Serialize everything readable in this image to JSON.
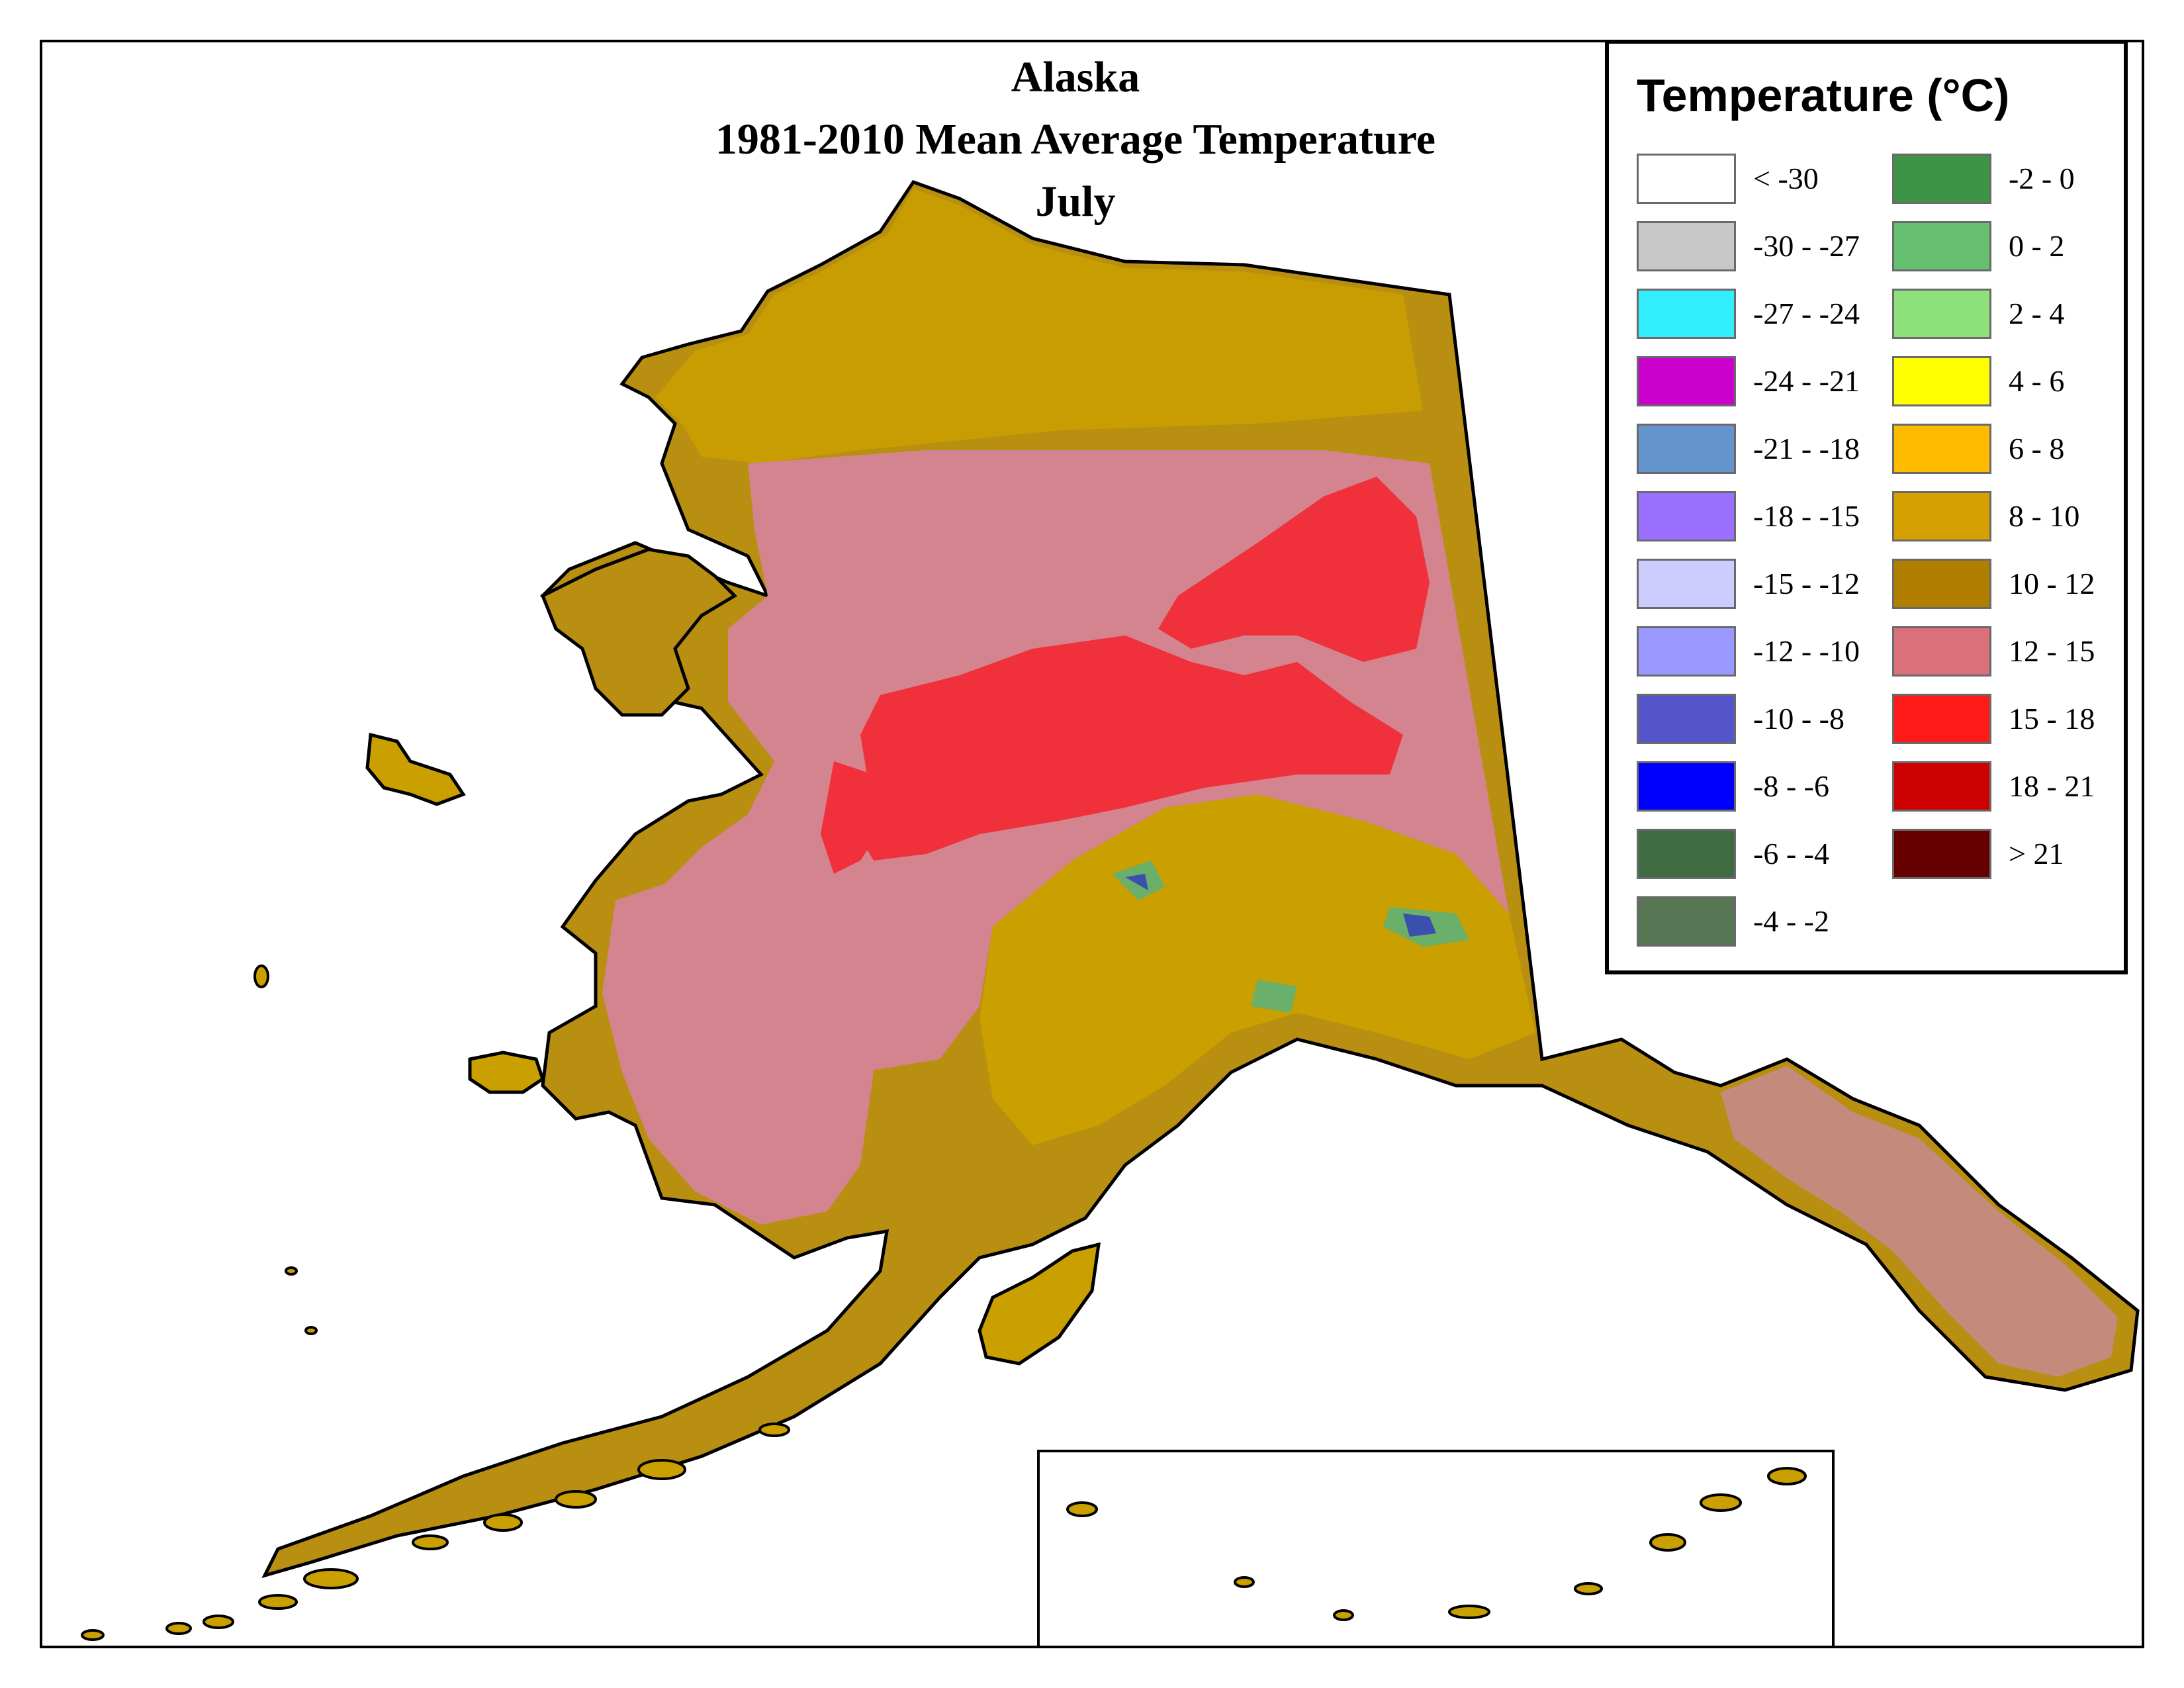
{
  "title": {
    "line1": "Alaska",
    "line2": "1981-2010 Mean Average Temperature",
    "line3": "July"
  },
  "legend": {
    "title": "Temperature (°C)",
    "column1": [
      {
        "label": "< -30",
        "color": "#ffffff"
      },
      {
        "label": "-30 - -27",
        "color": "#c8c8c8"
      },
      {
        "label": "-27 - -24",
        "color": "#33eeff"
      },
      {
        "label": "-24 - -21",
        "color": "#cc00cc"
      },
      {
        "label": "-21 - -18",
        "color": "#6495cd"
      },
      {
        "label": "-18 - -15",
        "color": "#9b70ff"
      },
      {
        "label": "-15 - -12",
        "color": "#ccccff"
      },
      {
        "label": "-12 - -10",
        "color": "#9999ff"
      },
      {
        "label": "-10 - -8",
        "color": "#5555cc"
      },
      {
        "label": "-8 - -6",
        "color": "#0000ff"
      },
      {
        "label": "-6 - -4",
        "color": "#3f6b43"
      },
      {
        "label": "-4 - -2",
        "color": "#577755"
      }
    ],
    "column2": [
      {
        "label": "-2 - 0",
        "color": "#3c9444"
      },
      {
        "label": "0 - 2",
        "color": "#66c070"
      },
      {
        "label": "2 - 4",
        "color": "#8ee07a"
      },
      {
        "label": "4 - 6",
        "color": "#ffff00"
      },
      {
        "label": "6 - 8",
        "color": "#ffbb00"
      },
      {
        "label": "8 - 10",
        "color": "#d6a000"
      },
      {
        "label": "10 - 12",
        "color": "#b07f00"
      },
      {
        "label": "12 - 15",
        "color": "#d9707a"
      },
      {
        "label": "15 - 18",
        "color": "#ff1a1a"
      },
      {
        "label": "18 - 21",
        "color": "#cc0000"
      },
      {
        "label": "> 21",
        "color": "#660000"
      }
    ]
  },
  "map_colors": {
    "warm_band": "#c99a00",
    "mid_band": "#a88310",
    "pink_band": "#d4848e",
    "red_band": "#f0303a",
    "outline": "#000000"
  }
}
